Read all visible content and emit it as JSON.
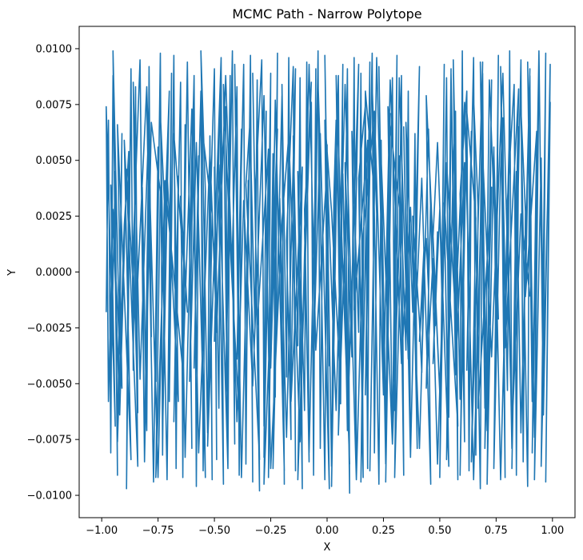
{
  "chart_data": {
    "type": "line",
    "title": "MCMC Path - Narrow Polytope",
    "xlabel": "X",
    "ylabel": "Y",
    "xlim": [
      -1.1,
      1.1
    ],
    "ylim": [
      -0.011,
      0.011
    ],
    "x_ticks": [
      -1.0,
      -0.75,
      -0.5,
      -0.25,
      0.0,
      0.25,
      0.5,
      0.75,
      1.0
    ],
    "x_tick_labels": [
      "−1.00",
      "−0.75",
      "−0.50",
      "−0.25",
      "0.00",
      "0.25",
      "0.50",
      "0.75",
      "1.00"
    ],
    "y_ticks": [
      -0.01,
      -0.0075,
      -0.005,
      -0.0025,
      0.0,
      0.0025,
      0.005,
      0.0075,
      0.01
    ],
    "y_tick_labels": [
      "−0.0100",
      "−0.0075",
      "−0.0050",
      "−0.0025",
      "0.0000",
      "0.0025",
      "0.0050",
      "0.0075",
      "0.0100"
    ],
    "grid": false,
    "series": [
      {
        "color": "#1f77b4",
        "path_x": [
          -0.98,
          -0.97,
          -0.96,
          -0.95,
          -0.96,
          -0.94,
          -0.93,
          -0.95,
          -0.92,
          -0.91,
          -0.93,
          -0.9,
          -0.88,
          -0.89,
          -0.87,
          -0.86,
          -0.85,
          -0.84,
          -0.86,
          -0.83,
          -0.81,
          -0.82,
          -0.8,
          -0.79,
          -0.78,
          -0.8,
          -0.77,
          -0.75,
          -0.76,
          -0.74,
          -0.73,
          -0.72,
          -0.74,
          -0.71,
          -0.69,
          -0.7,
          -0.68,
          -0.67,
          -0.66,
          -0.68,
          -0.65,
          -0.64,
          -0.63,
          -0.64,
          -0.62,
          -0.6,
          -0.61,
          -0.59,
          -0.58,
          -0.57,
          -0.59,
          -0.56,
          -0.55,
          -0.54,
          -0.56,
          -0.53,
          -0.52,
          -0.51,
          -0.52,
          -0.5,
          -0.49,
          -0.5,
          -0.48,
          -0.47,
          -0.46,
          -0.48,
          -0.45,
          -0.44,
          -0.43,
          -0.45,
          -0.42,
          -0.41,
          -0.42,
          -0.4,
          -0.39,
          -0.38,
          -0.4,
          -0.37,
          -0.36,
          -0.35,
          -0.36,
          -0.34,
          -0.33,
          -0.34,
          -0.32,
          -0.31,
          -0.3,
          -0.32,
          -0.29,
          -0.28,
          -0.27,
          -0.28,
          -0.26,
          -0.25,
          -0.26,
          -0.24,
          -0.23,
          -0.22,
          -0.24,
          -0.21,
          -0.2,
          -0.19,
          -0.2,
          -0.18,
          -0.17,
          -0.16,
          -0.18,
          -0.15,
          -0.14,
          -0.15,
          -0.13,
          -0.12,
          -0.11,
          -0.13,
          -0.1,
          -0.09,
          -0.08,
          -0.1,
          -0.07,
          -0.06,
          -0.05,
          -0.06,
          -0.04,
          -0.03,
          -0.02,
          -0.04,
          -0.01,
          0.0,
          0.01,
          -0.01,
          0.02,
          0.03,
          0.04,
          0.02,
          0.05,
          0.06,
          0.07,
          0.05,
          0.08,
          0.09,
          0.1,
          0.08,
          0.11,
          0.12,
          0.13,
          0.11,
          0.14,
          0.15,
          0.16,
          0.14,
          0.17,
          0.18,
          0.19,
          0.17,
          0.2,
          0.21,
          0.22,
          0.2,
          0.23,
          0.24,
          0.25,
          0.23,
          0.26,
          0.27,
          0.28,
          0.26,
          0.29,
          0.3,
          0.31,
          0.29,
          0.32,
          0.33,
          0.34,
          0.32,
          0.35,
          0.36,
          0.37,
          0.35,
          0.38,
          0.39,
          0.4,
          0.38,
          0.41,
          0.42,
          0.43,
          0.41,
          0.44,
          0.45,
          0.46,
          0.44,
          0.47,
          0.48,
          0.49,
          0.47,
          0.5,
          0.51,
          0.52,
          0.5,
          0.53,
          0.54,
          0.55,
          0.53,
          0.56,
          0.57,
          0.58,
          0.56,
          0.59,
          0.6,
          0.61,
          0.59,
          0.62,
          0.63,
          0.64,
          0.62,
          0.65,
          0.66,
          0.67,
          0.65,
          0.68,
          0.69,
          0.7,
          0.68,
          0.71,
          0.72,
          0.73,
          0.71,
          0.74,
          0.75,
          0.76,
          0.74,
          0.77,
          0.78,
          0.79,
          0.77,
          0.8,
          0.81,
          0.82,
          0.8,
          0.83,
          0.84,
          0.85,
          0.83,
          0.86,
          0.87,
          0.88,
          0.86,
          0.89,
          0.9,
          0.91,
          0.89,
          0.92,
          0.93,
          0.94,
          0.92,
          0.95,
          0.96,
          0.97,
          0.95,
          0.98,
          0.99,
          0.97,
          0.99,
          0.96,
          0.94,
          0.91,
          0.93,
          0.88,
          0.9,
          0.86,
          0.84,
          0.82,
          0.85,
          0.79,
          0.81,
          0.77,
          0.74,
          0.76,
          0.72,
          0.7,
          0.73,
          0.67,
          0.69,
          0.64,
          0.66,
          0.62,
          0.59,
          0.61,
          0.57,
          0.55,
          0.58,
          0.52,
          0.54,
          0.49,
          0.47,
          0.5,
          0.44,
          0.46,
          0.42,
          0.39,
          0.41,
          0.37,
          0.34,
          0.36,
          0.32,
          0.3,
          0.33,
          0.27,
          0.29,
          0.24,
          0.26,
          0.22,
          0.19,
          0.21,
          0.17,
          0.15,
          0.18,
          0.12,
          0.14,
          0.09,
          0.07,
          0.1,
          0.04,
          0.06,
          0.02,
          -0.01,
          0.01,
          -0.03,
          -0.06,
          -0.04,
          -0.08,
          -0.1,
          -0.07,
          -0.13,
          -0.11,
          -0.16,
          -0.14,
          -0.18,
          -0.21,
          -0.19,
          -0.23,
          -0.25,
          -0.22,
          -0.28,
          -0.26,
          -0.31,
          -0.33,
          -0.3,
          -0.36,
          -0.34,
          -0.38,
          -0.41,
          -0.39,
          -0.43,
          -0.46,
          -0.44,
          -0.48,
          -0.5,
          -0.47,
          -0.53,
          -0.51,
          -0.56,
          -0.54,
          -0.58,
          -0.61,
          -0.59,
          -0.63,
          -0.65,
          -0.62,
          -0.68,
          -0.66,
          -0.71,
          -0.73,
          -0.7,
          -0.76,
          -0.74,
          -0.78,
          -0.81,
          -0.79,
          -0.83,
          -0.86,
          -0.84,
          -0.88,
          -0.9,
          -0.87,
          -0.93,
          -0.91,
          -0.96,
          -0.94,
          -0.98,
          -0.97,
          -0.95,
          -0.92,
          -0.89,
          -0.85,
          -0.8,
          -0.75,
          -0.72,
          -0.69,
          -0.64,
          -0.6,
          -0.57,
          -0.52,
          -0.49,
          -0.45,
          -0.4,
          -0.37,
          -0.33,
          -0.28,
          -0.25,
          -0.2,
          -0.17,
          -0.12,
          -0.08,
          -0.05,
          0.0,
          0.04,
          0.08,
          0.13,
          0.16,
          0.21,
          0.25,
          0.28,
          0.33,
          0.37,
          0.41,
          0.45,
          0.49,
          0.53,
          0.57,
          0.61,
          0.65,
          0.69,
          0.73,
          0.78,
          0.82,
          0.86,
          0.9,
          0.94,
          0.98,
          0.99,
          0.97,
          0.93,
          0.88,
          0.84,
          0.79,
          0.75,
          0.7,
          0.66,
          0.61,
          0.57,
          0.53,
          0.48,
          0.43,
          0.38,
          0.34,
          0.29,
          0.24,
          0.2,
          0.15,
          0.1,
          0.06,
          0.01,
          -0.03,
          -0.08,
          -0.13,
          -0.18,
          -0.22,
          -0.27,
          -0.32,
          -0.36,
          -0.41,
          -0.46,
          -0.5,
          -0.55,
          -0.6,
          -0.65,
          -0.7,
          -0.75,
          -0.79,
          -0.84,
          -0.89,
          -0.93,
          -0.97,
          -0.99
        ],
        "path_y": [
          -0.0018,
          0.0068,
          -0.0081,
          0.0088,
          -0.0052,
          0.0045,
          -0.0091,
          0.0099,
          -0.0034,
          0.0062,
          -0.0076,
          0.0021,
          0.0054,
          -0.0097,
          0.0091,
          -0.0044,
          0.0083,
          -0.0063,
          0.0012,
          0.0095,
          -0.0085,
          0.0038,
          -0.0071,
          0.0092,
          -0.0029,
          0.0077,
          -0.0094,
          0.0056,
          -0.0049,
          0.0098,
          -0.0082,
          0.0027,
          0.0071,
          -0.0093,
          0.0089,
          -0.0058,
          0.0097,
          -0.0088,
          0.0043,
          -0.0067,
          0.0085,
          -0.0092,
          0.0066,
          -0.0031,
          0.0094,
          -0.0079,
          0.0016,
          0.0087,
          -0.0096,
          0.0052,
          -0.0043,
          0.0081,
          -0.0089,
          0.0036,
          0.0099,
          -0.0072,
          0.0061,
          -0.0093,
          0.0023,
          0.0091,
          -0.0084,
          0.0047,
          -0.0061,
          0.0096,
          -0.0095,
          0.0029,
          0.0074,
          -0.0087,
          0.0088,
          -0.0054,
          0.0099,
          -0.0077,
          0.0011,
          0.0083,
          -0.0091,
          0.0064,
          -0.0039,
          0.0093,
          -0.0086,
          0.0041,
          -0.0068,
          0.0097,
          -0.0094,
          0.0058,
          -0.0025,
          0.0086,
          -0.0098,
          0.0033,
          0.0095,
          -0.0069,
          0.0072,
          -0.0083,
          0.0019,
          0.0089,
          -0.0092,
          0.0053,
          -0.0056,
          0.0098,
          -0.0088,
          0.0037,
          0.0079,
          -0.0095,
          0.0084,
          -0.0047,
          0.0096,
          -0.0075,
          0.0014,
          0.0092,
          -0.0089,
          0.0061,
          -0.0033,
          0.0087,
          -0.0097,
          0.0045,
          -0.0062,
          0.0094,
          -0.0085,
          0.0028,
          0.0076,
          -0.0091,
          0.0091,
          -0.0051,
          0.0099,
          -0.0079,
          0.0022,
          0.0085,
          -0.0093,
          0.0057,
          -0.0042,
          0.0097,
          -0.0087,
          0.0034,
          0.0068,
          -0.0096,
          0.0088,
          -0.0059,
          0.0093,
          -0.0073,
          0.0017,
          0.0091,
          -0.0099,
          0.0049,
          -0.0038,
          0.0096,
          -0.0084,
          0.0063,
          -0.0027,
          0.0089,
          -0.0092,
          0.0042,
          0.0075,
          -0.0088,
          0.0094,
          -0.0055,
          0.0098,
          -0.0081,
          0.0026,
          0.0083,
          -0.0095,
          0.0059,
          -0.0046,
          0.0092,
          -0.0086,
          0.0031,
          0.0071,
          -0.0094,
          0.0087,
          -0.0062,
          0.0097,
          -0.0077,
          0.0013,
          0.0088,
          -0.0091,
          0.0052,
          -0.0035,
          0.0081,
          -0.0083,
          0.0067,
          -0.0018,
          0.0062,
          -0.0079,
          0.0025,
          -0.0022,
          -0.0045,
          0.0011,
          -0.0031,
          0.0015,
          -0.0008,
          0.0033,
          -0.0052,
          0.0006,
          -0.0024,
          0.0018,
          -0.0041,
          0.0028,
          -0.0012,
          0.0093,
          -0.0092,
          0.0087,
          -0.0065,
          0.0091,
          -0.0084,
          0.0048,
          0.0072,
          -0.0093,
          0.0095,
          -0.0057,
          0.0099,
          -0.0076,
          0.0035,
          0.0081,
          -0.0089,
          0.0063,
          -0.0044,
          0.0096,
          -0.0082,
          0.0029,
          0.0078,
          -0.0097,
          0.0089,
          -0.0061,
          0.0094,
          -0.0071,
          0.0021,
          0.0086,
          -0.0095,
          0.0056,
          -0.0039,
          0.0097,
          -0.0088,
          0.0046,
          0.0069,
          -0.0092,
          0.0092,
          -0.0053,
          0.0099,
          -0.0079,
          0.0032,
          0.0084,
          -0.0091,
          0.0065,
          -0.0048,
          0.0095,
          -0.0085,
          0.0027,
          0.0073,
          -0.0096,
          0.0088,
          -0.0058,
          0.0094,
          -0.0074,
          0.0019,
          0.0091,
          -0.0093,
          0.0051,
          -0.0041,
          0.0098,
          -0.0087,
          0.0039,
          0.0076,
          -0.0094,
          0.0093,
          -0.0064,
          0.0099,
          -0.0081,
          0.0063,
          -0.0011,
          0.0091,
          -0.0072,
          0.0045,
          -0.0088,
          0.0082,
          -0.0034,
          0.0067,
          -0.0093,
          0.0054,
          -0.0021,
          0.0086,
          -0.0079,
          0.0038,
          -0.0061,
          0.0094,
          -0.0085,
          0.0024,
          0.0072,
          -0.0091,
          0.0049,
          -0.0046,
          0.0089,
          -0.0069,
          0.0031,
          -0.0087,
          0.0058,
          0.0016,
          -0.0054,
          0.0079,
          -0.0095,
          0.0042,
          -0.0028,
          0.0092,
          -0.0083,
          0.0065,
          -0.0039,
          0.0087,
          -0.0092,
          0.0022,
          0.0074,
          -0.0077,
          0.0051,
          -0.0063,
          0.0096,
          -0.0089,
          0.0035,
          0.0081,
          -0.0094,
          0.0059,
          -0.0017,
          0.0093,
          -0.0071,
          0.0044,
          -0.0086,
          0.0088,
          -0.0052,
          0.0027,
          0.0068,
          -0.0097,
          0.0062,
          -0.0036,
          0.0094,
          -0.0081,
          0.0019,
          0.0085,
          -0.0093,
          0.0047,
          -0.0058,
          0.0091,
          -0.0074,
          0.0033,
          -0.0089,
          0.0077,
          -0.0043,
          0.0064,
          -0.0095,
          0.0055,
          -0.0024,
          0.0089,
          -0.0084,
          0.0039,
          0.0071,
          -0.0092,
          0.0093,
          -0.0066,
          0.0012,
          0.0084,
          -0.0088,
          0.0048,
          -0.0031,
          0.0096,
          -0.0078,
          0.0026,
          0.0069,
          -0.0092,
          0.0058,
          -0.0049,
          0.0088,
          -0.0083,
          0.0034,
          -0.0018,
          0.0062,
          -0.0058,
          0.0045,
          -0.0073,
          0.0081,
          -0.0092,
          0.0036,
          0.0067,
          -0.0085,
          0.0071,
          -0.0048,
          0.0085,
          -0.0087,
          0.0018,
          0.0059,
          -0.0084,
          0.0066,
          -0.0052,
          0.0039,
          -0.0069,
          0.0074,
          -0.0058,
          0.0028,
          -0.0064,
          0.0046,
          -0.0025,
          0.0083,
          -0.0092,
          0.0041,
          0.0009,
          -0.0044,
          0.0073,
          -0.0081,
          0.0054,
          -0.0027,
          0.0088,
          -0.0067,
          0.0032,
          -0.0051,
          0.0079,
          -0.0088,
          0.0023,
          0.0061,
          -0.0076,
          0.0093,
          -0.0035,
          0.0047,
          -0.0062,
          0.0084,
          -0.0093,
          0.0017,
          0.0072,
          -0.0055,
          0.0086,
          -0.0041,
          0.0029,
          -0.0079,
          0.0064,
          -0.0086,
          0.0049,
          -0.0019,
          0.0076,
          -0.0093,
          0.0053,
          -0.0038,
          0.0089,
          -0.0072,
          0.0026,
          -0.0011
        ]
      }
    ]
  }
}
